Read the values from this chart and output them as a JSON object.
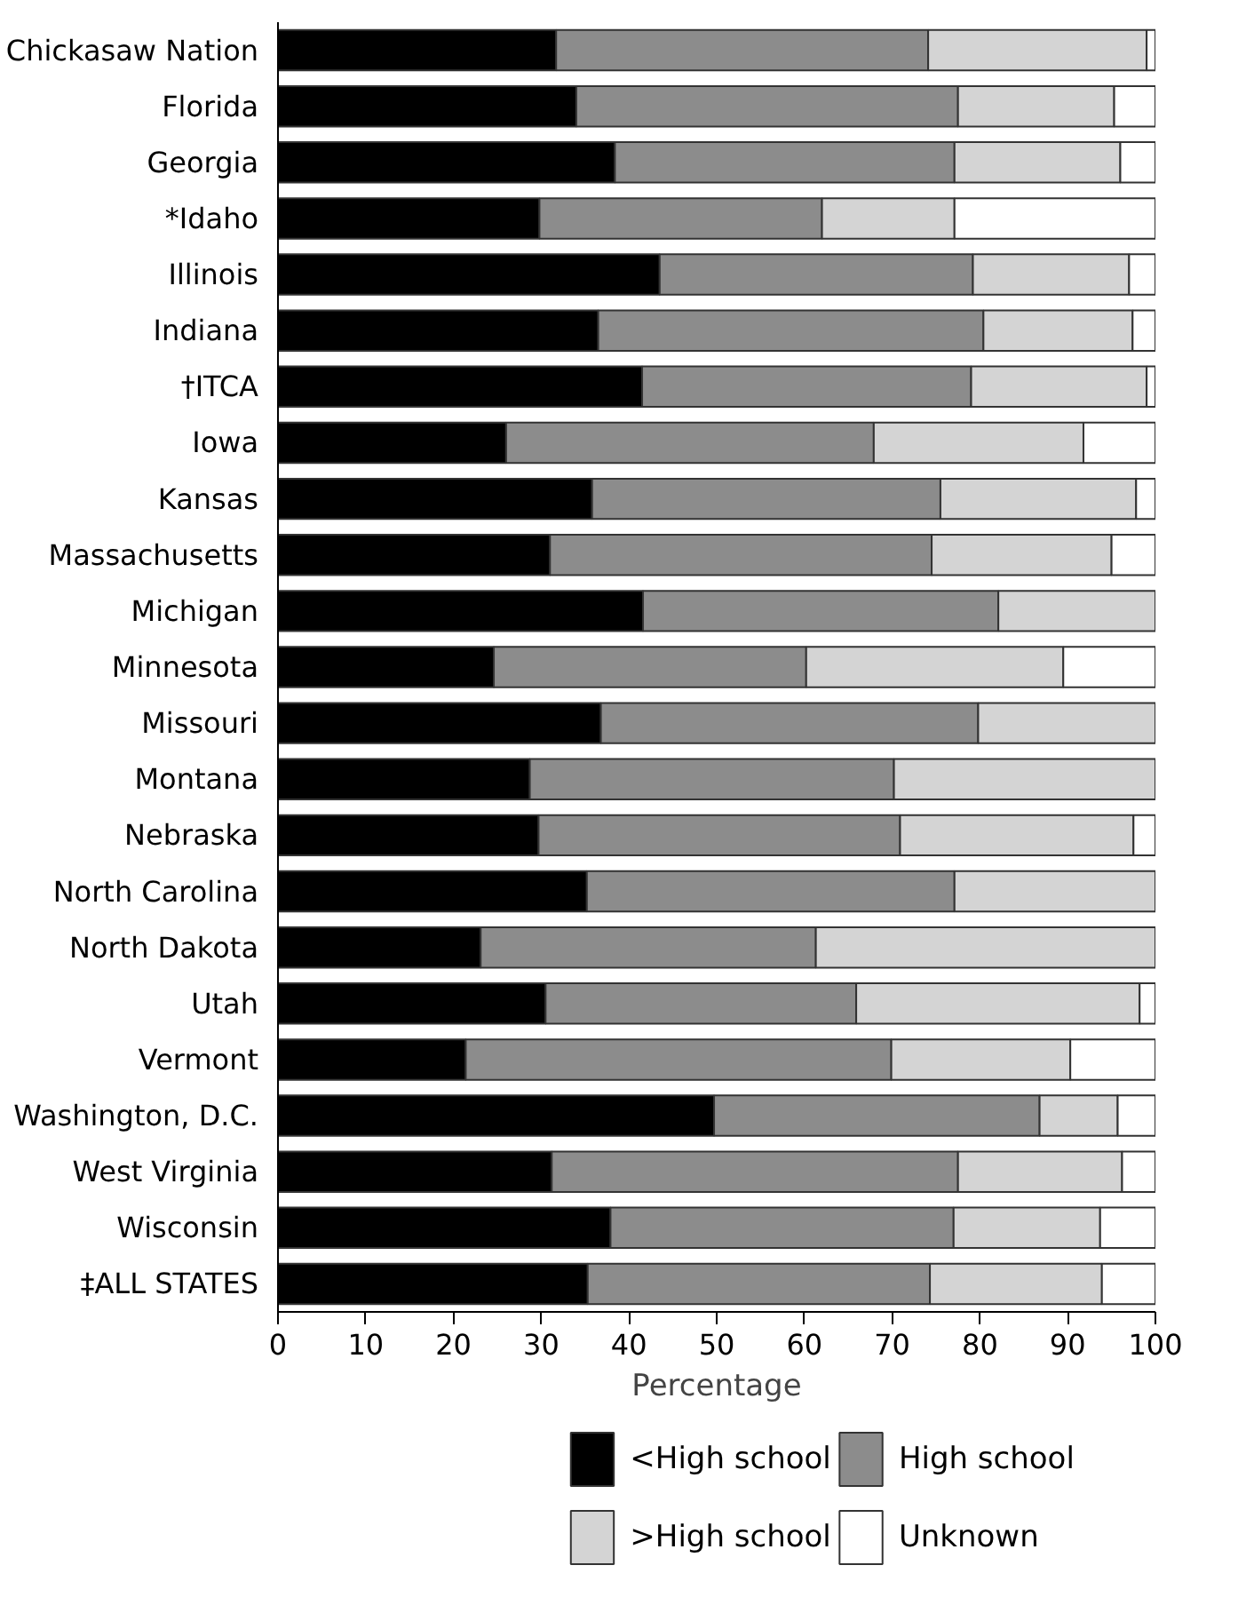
{
  "chart_data": {
    "type": "bar",
    "orientation": "horizontal",
    "stacked": true,
    "xlabel": "Percentage",
    "categories": [
      "Chickasaw Nation",
      "Florida",
      "Georgia",
      "*Idaho",
      "Illinois",
      "Indiana",
      "†ITCA",
      "Iowa",
      "Kansas",
      "Massachusetts",
      "Michigan",
      "Minnesota",
      "Missouri",
      "Montana",
      "Nebraska",
      "North Carolina",
      "North Dakota",
      "Utah",
      "Vermont",
      "Washington, D.C.",
      "West Virginia",
      "Wisconsin",
      "‡ALL STATES"
    ],
    "series": [
      {
        "name": "<High school",
        "color": "#000000",
        "values": [
          31.7,
          34.0,
          38.4,
          29.8,
          43.5,
          36.5,
          41.5,
          26.0,
          35.8,
          31.0,
          41.6,
          24.6,
          36.8,
          28.7,
          29.7,
          35.2,
          23.1,
          30.5,
          21.4,
          49.7,
          31.2,
          37.9,
          35.3
        ]
      },
      {
        "name": "High school",
        "color": "#8c8c8c",
        "values": [
          42.4,
          43.5,
          38.7,
          32.2,
          35.7,
          43.9,
          37.5,
          41.9,
          39.7,
          43.5,
          40.5,
          35.6,
          43.0,
          41.5,
          41.2,
          41.9,
          38.2,
          35.4,
          48.5,
          37.1,
          46.3,
          39.1,
          39.0
        ]
      },
      {
        "name": ">High school",
        "color": "#d4d4d4",
        "values": [
          24.9,
          17.8,
          18.9,
          15.1,
          17.8,
          17.0,
          20.0,
          23.9,
          22.3,
          20.5,
          17.9,
          29.3,
          20.2,
          29.8,
          26.6,
          22.9,
          38.7,
          32.3,
          20.4,
          8.9,
          18.7,
          16.7,
          19.6
        ]
      },
      {
        "name": "Unknown",
        "color": "#ffffff",
        "values": [
          1.0,
          4.7,
          4.0,
          22.9,
          3.0,
          2.6,
          1.0,
          8.2,
          2.2,
          5.0,
          null,
          10.5,
          null,
          null,
          2.5,
          null,
          null,
          1.8,
          9.7,
          4.3,
          3.8,
          6.3,
          6.1
        ]
      }
    ],
    "xlim": [
      0,
      100
    ],
    "xticks": [
      0,
      10,
      20,
      30,
      40,
      50,
      60,
      70,
      80,
      90,
      100
    ],
    "grid": false,
    "legend": "bottom"
  }
}
